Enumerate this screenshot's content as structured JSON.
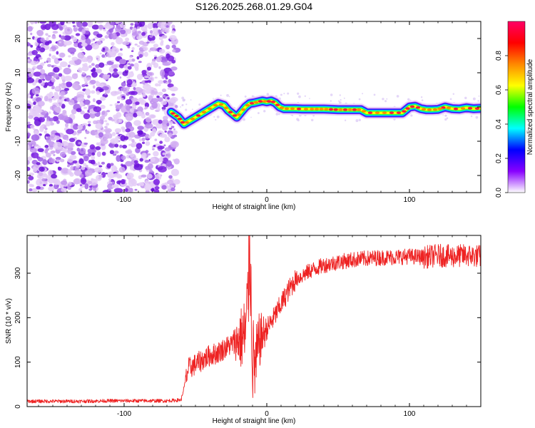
{
  "chart_data": [
    {
      "type": "heatmap",
      "title": "S126.2025.268.01.29.G04",
      "xlabel": "Height of straight line (km)",
      "ylabel": "Frequency (Hz)",
      "xlim": [
        -168,
        150
      ],
      "ylim": [
        -25,
        25
      ],
      "x_ticks": [
        -100,
        0,
        100
      ],
      "x_tick_labels": [
        "-100",
        "0",
        "100"
      ],
      "y_ticks": [
        -20,
        -10,
        0,
        10,
        20
      ],
      "y_tick_labels": [
        "-20",
        "-10",
        "0",
        "10",
        "20"
      ],
      "noise_region_x": [
        -168,
        -63
      ],
      "ridge": {
        "x": [
          -67,
          -62,
          -58,
          -54,
          -50,
          -46,
          -42,
          -38,
          -34,
          -30,
          -27,
          -24,
          -21,
          -18,
          -15,
          -12,
          -9,
          -6,
          -3,
          0,
          3,
          6,
          9,
          12,
          16,
          20,
          25,
          30,
          40,
          50,
          60,
          66,
          70,
          75,
          80,
          85,
          90,
          95,
          100,
          104,
          108,
          112,
          116,
          120,
          125,
          130,
          135,
          140,
          145,
          150
        ],
        "freq": [
          -1.5,
          -3,
          -5,
          -4,
          -3,
          -2,
          -1,
          0,
          1,
          0.5,
          -1,
          -2,
          -3,
          -1.5,
          0,
          1,
          1.2,
          1.5,
          1.8,
          1.5,
          1.8,
          1.2,
          0,
          -0.5,
          -0.5,
          -0.5,
          -0.6,
          -0.6,
          -0.6,
          -0.8,
          -0.8,
          -0.8,
          -1.7,
          -1.7,
          -1.7,
          -1.7,
          -1.7,
          -1.7,
          0,
          0.2,
          -0.5,
          -0.8,
          -0.8,
          -0.7,
          0,
          -0.5,
          -0.6,
          -0.2,
          -0.5,
          -0.4
        ]
      },
      "colorbar": {
        "label": "Normalized spectral amplitude",
        "range": [
          0,
          1
        ],
        "ticks": [
          "0.0",
          "0.2",
          "0.4",
          "0.6",
          "0.8"
        ],
        "tick_values": [
          0,
          0.2,
          0.4,
          0.6,
          0.8
        ],
        "colors": [
          "#ffffff",
          "#8800ff",
          "#0000ff",
          "#00ffff",
          "#00ff00",
          "#ffff00",
          "#ff8800",
          "#ff0000",
          "#ff0066"
        ]
      }
    },
    {
      "type": "line",
      "title": "",
      "xlabel": "Height of straight line (km)",
      "ylabel": "SNR (10 * v/v)",
      "xlim": [
        -168,
        150
      ],
      "ylim": [
        0,
        385
      ],
      "x_ticks": [
        -100,
        0,
        100
      ],
      "x_tick_labels": [
        "-100",
        "0",
        "100"
      ],
      "y_ticks": [
        0,
        100,
        200,
        300
      ],
      "y_tick_labels": [
        "0",
        "100",
        "200",
        "300"
      ],
      "line_color": "#ee2222",
      "series": [
        {
          "name": "SNR",
          "x": [
            -168,
            -150,
            -130,
            -110,
            -90,
            -70,
            -60,
            -55,
            -50,
            -45,
            -40,
            -35,
            -30,
            -25,
            -20,
            -15,
            -13,
            -12,
            -10,
            -8,
            -5,
            0,
            5,
            10,
            15,
            20,
            25,
            30,
            40,
            50,
            60,
            70,
            80,
            90,
            100,
            110,
            120,
            130,
            140,
            150
          ],
          "y": [
            12,
            12,
            12,
            13,
            13,
            13,
            15,
            85,
            95,
            105,
            115,
            120,
            130,
            140,
            150,
            160,
            250,
            380,
            110,
            90,
            150,
            175,
            200,
            230,
            260,
            285,
            295,
            305,
            318,
            325,
            330,
            333,
            335,
            336,
            338,
            336,
            340,
            338,
            340,
            338
          ]
        }
      ]
    }
  ]
}
